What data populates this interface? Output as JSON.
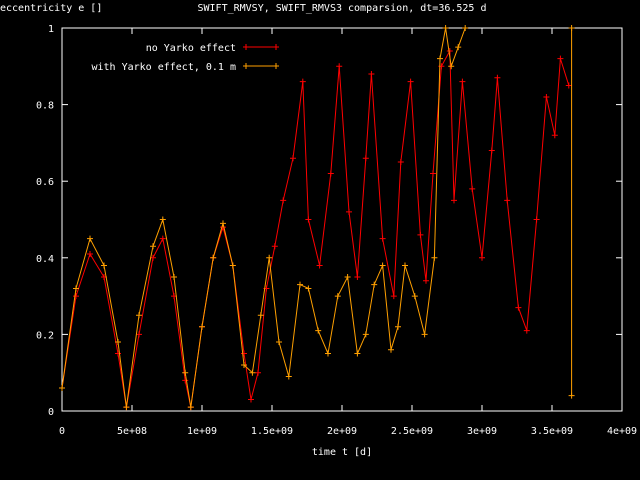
{
  "chart_data": {
    "type": "line",
    "title": "SWIFT_RMVSY, SWIFT_RMVS3 comparsion, dt=36.525 d",
    "xlabel": "time t [d]",
    "ylabel": "eccentricity e []",
    "xlim": [
      0,
      4000000000
    ],
    "ylim": [
      0,
      1
    ],
    "xticks": [
      {
        "value": 0,
        "label": "0"
      },
      {
        "value": 500000000,
        "label": "5e+08"
      },
      {
        "value": 1000000000,
        "label": "1e+09"
      },
      {
        "value": 1500000000,
        "label": "1.5e+09"
      },
      {
        "value": 2000000000,
        "label": "2e+09"
      },
      {
        "value": 2500000000,
        "label": "2.5e+09"
      },
      {
        "value": 3000000000,
        "label": "3e+09"
      },
      {
        "value": 3500000000,
        "label": "3.5e+09"
      },
      {
        "value": 4000000000,
        "label": "4e+09"
      }
    ],
    "yticks": [
      {
        "value": 0,
        "label": "0"
      },
      {
        "value": 0.2,
        "label": "0.2"
      },
      {
        "value": 0.4,
        "label": "0.4"
      },
      {
        "value": 0.6,
        "label": "0.6"
      },
      {
        "value": 0.8,
        "label": "0.8"
      },
      {
        "value": 1,
        "label": "1"
      }
    ],
    "legend_position": "top-right",
    "grid": false,
    "series": [
      {
        "name": "no Yarko effect",
        "color": "#ff0000",
        "marker": "+",
        "x": [
          0,
          100000000,
          200000000,
          300000000,
          400000000,
          460000000,
          550000000,
          650000000,
          720000000,
          800000000,
          880000000,
          920000000,
          1000000000,
          1080000000,
          1150000000,
          1220000000,
          1300000000,
          1350000000,
          1400000000,
          1460000000,
          1520000000,
          1580000000,
          1650000000,
          1720000000,
          1760000000,
          1840000000,
          1920000000,
          1980000000,
          2050000000,
          2110000000,
          2170000000,
          2210000000,
          2290000000,
          2370000000,
          2420000000,
          2490000000,
          2560000000,
          2600000000,
          2650000000,
          2710000000,
          2770000000,
          2800000000,
          2860000000,
          2930000000,
          3000000000,
          3070000000,
          3110000000,
          3180000000,
          3260000000,
          3320000000,
          3390000000,
          3460000000,
          3520000000,
          3560000000,
          3620000000
        ],
        "y": [
          0.06,
          0.3,
          0.41,
          0.35,
          0.15,
          0.01,
          0.2,
          0.4,
          0.45,
          0.3,
          0.08,
          0.01,
          0.22,
          0.4,
          0.48,
          0.38,
          0.15,
          0.03,
          0.1,
          0.32,
          0.43,
          0.55,
          0.66,
          0.86,
          0.5,
          0.38,
          0.62,
          0.9,
          0.52,
          0.35,
          0.66,
          0.88,
          0.45,
          0.3,
          0.65,
          0.86,
          0.46,
          0.34,
          0.62,
          0.9,
          0.94,
          0.55,
          0.86,
          0.58,
          0.4,
          0.68,
          0.87,
          0.55,
          0.27,
          0.21,
          0.5,
          0.82,
          0.72,
          0.92,
          0.85
        ]
      },
      {
        "name": "with Yarko effect, 0.1 m",
        "color": "#ffa000",
        "marker": "+",
        "x": [
          0,
          100000000,
          200000000,
          300000000,
          400000000,
          460000000,
          550000000,
          650000000,
          720000000,
          800000000,
          880000000,
          920000000,
          1000000000,
          1080000000,
          1150000000,
          1220000000,
          1300000000,
          1360000000,
          1420000000,
          1480000000,
          1550000000,
          1620000000,
          1700000000,
          1760000000,
          1830000000,
          1900000000,
          1970000000,
          2040000000,
          2110000000,
          2170000000,
          2230000000,
          2290000000,
          2350000000,
          2400000000,
          2450000000,
          2520000000,
          2590000000,
          2660000000,
          2700000000,
          2740000000,
          2780000000,
          2830000000,
          2880000000
        ],
        "y": [
          0.06,
          0.32,
          0.45,
          0.38,
          0.18,
          0.01,
          0.25,
          0.43,
          0.5,
          0.35,
          0.1,
          0.01,
          0.22,
          0.4,
          0.49,
          0.38,
          0.12,
          0.1,
          0.25,
          0.4,
          0.18,
          0.09,
          0.33,
          0.32,
          0.21,
          0.15,
          0.3,
          0.35,
          0.15,
          0.2,
          0.33,
          0.38,
          0.16,
          0.22,
          0.38,
          0.3,
          0.2,
          0.4,
          0.92,
          1.0,
          0.9,
          0.95,
          1.0
        ]
      },
      {
        "name": "",
        "color": "#ffa000",
        "marker": "+",
        "x": [
          3640000000,
          3640000000
        ],
        "y": [
          0.04,
          1.0
        ]
      }
    ]
  }
}
